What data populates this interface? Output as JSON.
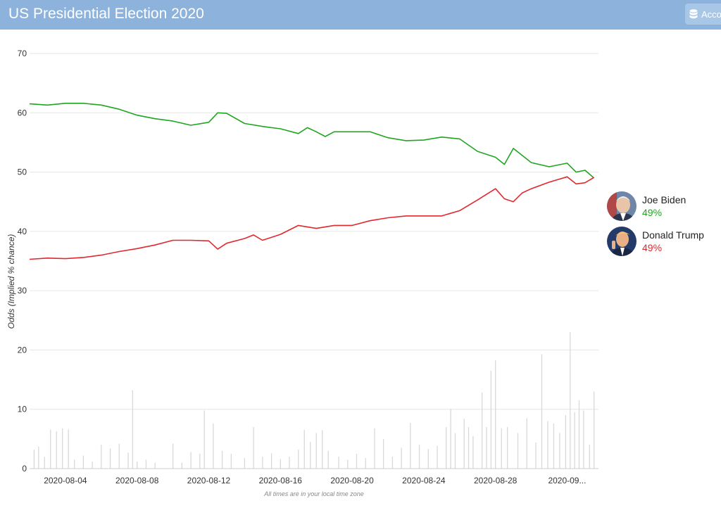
{
  "header": {
    "title": "US Presidential Election 2020",
    "account_label": "Account"
  },
  "colors": {
    "header_bg": "#8db3dc",
    "biden": "#1fa61f",
    "trump": "#e0282e",
    "volume": "#d9d9d9",
    "grid": "#e6e6e6"
  },
  "legend": [
    {
      "name": "Joe Biden",
      "pct": "49%",
      "color": "#1fa61f"
    },
    {
      "name": "Donald Trump",
      "pct": "49%",
      "color": "#e0282e"
    }
  ],
  "footnote": "All times are in your local time zone",
  "chart_data": {
    "type": "line",
    "ylabel": "Odds (Implied % chance)",
    "ylim": [
      0,
      70
    ],
    "yticks": [
      0,
      10,
      20,
      30,
      40,
      50,
      60,
      70
    ],
    "xlim": [
      "2020-08-02T00:00",
      "2020-09-02T18:00"
    ],
    "xtick_labels": [
      "2020-08-04",
      "2020-08-08",
      "2020-08-12",
      "2020-08-16",
      "2020-08-20",
      "2020-08-24",
      "2020-08-28",
      "2020-09..."
    ],
    "xtick_dates": [
      "2020-08-04",
      "2020-08-08",
      "2020-08-12",
      "2020-08-16",
      "2020-08-20",
      "2020-08-24",
      "2020-08-28",
      "2020-09-01"
    ],
    "grid": true,
    "legend_position": "right",
    "series": [
      {
        "name": "Joe Biden",
        "color": "#1fa61f",
        "points": [
          [
            "2020-08-02T00:00",
            61.5
          ],
          [
            "2020-08-03T00:00",
            61.3
          ],
          [
            "2020-08-04T00:00",
            61.6
          ],
          [
            "2020-08-05T00:00",
            61.6
          ],
          [
            "2020-08-06T00:00",
            61.3
          ],
          [
            "2020-08-07T00:00",
            60.6
          ],
          [
            "2020-08-08T00:00",
            59.6
          ],
          [
            "2020-08-09T00:00",
            59.0
          ],
          [
            "2020-08-10T00:00",
            58.6
          ],
          [
            "2020-08-11T00:00",
            57.9
          ],
          [
            "2020-08-12T00:00",
            58.4
          ],
          [
            "2020-08-12T12:00",
            60.0
          ],
          [
            "2020-08-13T00:00",
            59.9
          ],
          [
            "2020-08-14T00:00",
            58.2
          ],
          [
            "2020-08-15T00:00",
            57.7
          ],
          [
            "2020-08-16T00:00",
            57.3
          ],
          [
            "2020-08-17T00:00",
            56.5
          ],
          [
            "2020-08-17T12:00",
            57.5
          ],
          [
            "2020-08-18T00:00",
            56.8
          ],
          [
            "2020-08-18T12:00",
            56.0
          ],
          [
            "2020-08-19T00:00",
            56.8
          ],
          [
            "2020-08-20T00:00",
            56.8
          ],
          [
            "2020-08-21T00:00",
            56.8
          ],
          [
            "2020-08-22T00:00",
            55.8
          ],
          [
            "2020-08-23T00:00",
            55.3
          ],
          [
            "2020-08-24T00:00",
            55.4
          ],
          [
            "2020-08-25T00:00",
            55.9
          ],
          [
            "2020-08-26T00:00",
            55.6
          ],
          [
            "2020-08-27T00:00",
            53.5
          ],
          [
            "2020-08-28T00:00",
            52.5
          ],
          [
            "2020-08-28T12:00",
            51.3
          ],
          [
            "2020-08-29T00:00",
            54.0
          ],
          [
            "2020-08-29T12:00",
            52.8
          ],
          [
            "2020-08-30T00:00",
            51.6
          ],
          [
            "2020-08-31T00:00",
            50.9
          ],
          [
            "2020-09-01T00:00",
            51.5
          ],
          [
            "2020-09-01T12:00",
            50.0
          ],
          [
            "2020-09-02T00:00",
            50.3
          ],
          [
            "2020-09-02T12:00",
            49.0
          ]
        ]
      },
      {
        "name": "Donald Trump",
        "color": "#e0282e",
        "points": [
          [
            "2020-08-02T00:00",
            35.3
          ],
          [
            "2020-08-03T00:00",
            35.5
          ],
          [
            "2020-08-04T00:00",
            35.4
          ],
          [
            "2020-08-05T00:00",
            35.6
          ],
          [
            "2020-08-06T00:00",
            36.0
          ],
          [
            "2020-08-07T00:00",
            36.6
          ],
          [
            "2020-08-08T00:00",
            37.1
          ],
          [
            "2020-08-09T00:00",
            37.7
          ],
          [
            "2020-08-10T00:00",
            38.5
          ],
          [
            "2020-08-11T00:00",
            38.5
          ],
          [
            "2020-08-12T00:00",
            38.4
          ],
          [
            "2020-08-12T12:00",
            37.0
          ],
          [
            "2020-08-13T00:00",
            38.0
          ],
          [
            "2020-08-14T00:00",
            38.8
          ],
          [
            "2020-08-14T12:00",
            39.4
          ],
          [
            "2020-08-15T00:00",
            38.5
          ],
          [
            "2020-08-16T00:00",
            39.5
          ],
          [
            "2020-08-17T00:00",
            41.0
          ],
          [
            "2020-08-18T00:00",
            40.5
          ],
          [
            "2020-08-19T00:00",
            41.0
          ],
          [
            "2020-08-20T00:00",
            41.0
          ],
          [
            "2020-08-21T00:00",
            41.8
          ],
          [
            "2020-08-22T00:00",
            42.3
          ],
          [
            "2020-08-23T00:00",
            42.6
          ],
          [
            "2020-08-24T00:00",
            42.6
          ],
          [
            "2020-08-25T00:00",
            42.6
          ],
          [
            "2020-08-26T00:00",
            43.5
          ],
          [
            "2020-08-27T00:00",
            45.3
          ],
          [
            "2020-08-28T00:00",
            47.2
          ],
          [
            "2020-08-28T12:00",
            45.5
          ],
          [
            "2020-08-29T00:00",
            45.0
          ],
          [
            "2020-08-29T12:00",
            46.5
          ],
          [
            "2020-08-30T00:00",
            47.2
          ],
          [
            "2020-08-31T00:00",
            48.3
          ],
          [
            "2020-09-01T00:00",
            49.2
          ],
          [
            "2020-09-01T12:00",
            48.0
          ],
          [
            "2020-09-02T00:00",
            48.2
          ],
          [
            "2020-09-02T12:00",
            49.1
          ]
        ]
      }
    ],
    "volume": {
      "color": "#d9d9d9",
      "points": [
        [
          "2020-08-02T06:00",
          3.2
        ],
        [
          "2020-08-02T12:00",
          3.7
        ],
        [
          "2020-08-02T20:00",
          2.0
        ],
        [
          "2020-08-03T04:00",
          6.6
        ],
        [
          "2020-08-03T12:00",
          6.3
        ],
        [
          "2020-08-03T20:00",
          6.8
        ],
        [
          "2020-08-04T04:00",
          6.6
        ],
        [
          "2020-08-04T12:00",
          1.5
        ],
        [
          "2020-08-05T00:00",
          2.2
        ],
        [
          "2020-08-05T12:00",
          1.2
        ],
        [
          "2020-08-06T00:00",
          4.0
        ],
        [
          "2020-08-06T12:00",
          3.4
        ],
        [
          "2020-08-07T00:00",
          4.2
        ],
        [
          "2020-08-07T12:00",
          2.7
        ],
        [
          "2020-08-07T18:00",
          13.2
        ],
        [
          "2020-08-08T00:00",
          1.2
        ],
        [
          "2020-08-08T12:00",
          1.5
        ],
        [
          "2020-08-09T00:00",
          1.0
        ],
        [
          "2020-08-10T00:00",
          4.2
        ],
        [
          "2020-08-10T12:00",
          1.0
        ],
        [
          "2020-08-11T00:00",
          2.8
        ],
        [
          "2020-08-11T12:00",
          2.5
        ],
        [
          "2020-08-11T18:00",
          9.8
        ],
        [
          "2020-08-12T06:00",
          7.6
        ],
        [
          "2020-08-12T18:00",
          3.0
        ],
        [
          "2020-08-13T06:00",
          2.5
        ],
        [
          "2020-08-14T00:00",
          1.8
        ],
        [
          "2020-08-14T12:00",
          7.0
        ],
        [
          "2020-08-15T00:00",
          2.0
        ],
        [
          "2020-08-15T12:00",
          2.6
        ],
        [
          "2020-08-16T00:00",
          1.6
        ],
        [
          "2020-08-16T12:00",
          2.0
        ],
        [
          "2020-08-17T00:00",
          3.2
        ],
        [
          "2020-08-17T08:00",
          6.5
        ],
        [
          "2020-08-17T16:00",
          4.5
        ],
        [
          "2020-08-18T00:00",
          6.0
        ],
        [
          "2020-08-18T08:00",
          6.5
        ],
        [
          "2020-08-18T16:00",
          3.0
        ],
        [
          "2020-08-19T06:00",
          2.0
        ],
        [
          "2020-08-19T18:00",
          1.5
        ],
        [
          "2020-08-20T06:00",
          2.5
        ],
        [
          "2020-08-20T18:00",
          1.8
        ],
        [
          "2020-08-21T06:00",
          6.8
        ],
        [
          "2020-08-21T18:00",
          5.0
        ],
        [
          "2020-08-22T06:00",
          2.0
        ],
        [
          "2020-08-22T18:00",
          3.5
        ],
        [
          "2020-08-23T06:00",
          7.7
        ],
        [
          "2020-08-23T18:00",
          4.0
        ],
        [
          "2020-08-24T06:00",
          3.3
        ],
        [
          "2020-08-24T18:00",
          3.8
        ],
        [
          "2020-08-25T06:00",
          7.0
        ],
        [
          "2020-08-25T12:00",
          10.1
        ],
        [
          "2020-08-25T18:00",
          6.0
        ],
        [
          "2020-08-26T06:00",
          8.4
        ],
        [
          "2020-08-26T12:00",
          7.0
        ],
        [
          "2020-08-26T18:00",
          5.5
        ],
        [
          "2020-08-27T06:00",
          12.8
        ],
        [
          "2020-08-27T12:00",
          7.0
        ],
        [
          "2020-08-27T18:00",
          16.5
        ],
        [
          "2020-08-28T00:00",
          18.3
        ],
        [
          "2020-08-28T08:00",
          6.8
        ],
        [
          "2020-08-28T16:00",
          7.0
        ],
        [
          "2020-08-29T06:00",
          6.0
        ],
        [
          "2020-08-29T18:00",
          8.5
        ],
        [
          "2020-08-30T06:00",
          4.4
        ],
        [
          "2020-08-30T14:00",
          19.3
        ],
        [
          "2020-08-30T22:00",
          8.0
        ],
        [
          "2020-08-31T06:00",
          7.6
        ],
        [
          "2020-08-31T14:00",
          6.0
        ],
        [
          "2020-08-31T22:00",
          9.0
        ],
        [
          "2020-09-01T04:00",
          23.0
        ],
        [
          "2020-09-01T10:00",
          9.5
        ],
        [
          "2020-09-01T16:00",
          11.5
        ],
        [
          "2020-09-01T22:00",
          9.8
        ],
        [
          "2020-09-02T06:00",
          4.0
        ],
        [
          "2020-09-02T12:00",
          13.0
        ]
      ]
    }
  }
}
